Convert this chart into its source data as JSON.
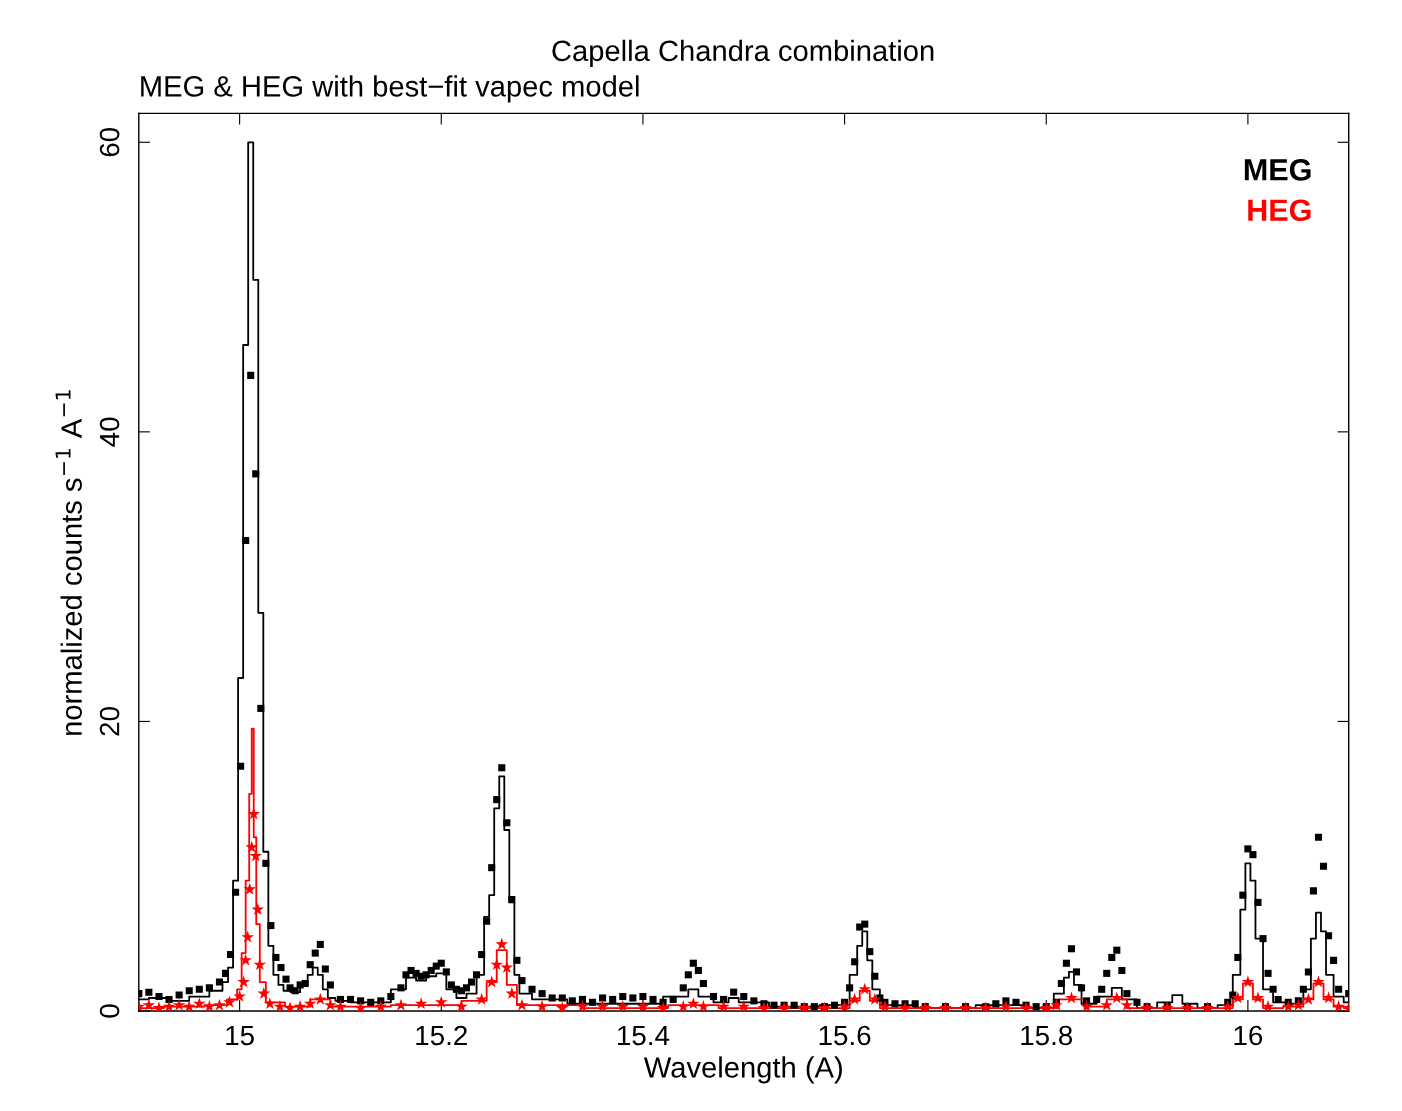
{
  "chart_data": {
    "type": "scatter",
    "title": "Capella Chandra combination",
    "subtitle": "MEG & HEG with best−fit vapec model",
    "xlabel": "Wavelength (A)",
    "ylabel": "normalized counts s$^{−1}$ A$^{−1}$",
    "xlim": [
      14.9,
      16.1
    ],
    "ylim": [
      0,
      62
    ],
    "xticks": [
      15,
      15.2,
      15.4,
      15.6,
      15.8,
      16
    ],
    "yticks": [
      0,
      20,
      40,
      60
    ],
    "grid": false,
    "legend": "top right",
    "series": [
      {
        "name": "MEG",
        "marker": "square",
        "color": "#000000",
        "x": [
          14.9,
          14.91,
          14.92,
          14.93,
          14.94,
          14.95,
          14.96,
          14.97,
          14.98,
          14.986,
          14.991,
          14.996,
          15.001,
          15.006,
          15.011,
          15.016,
          15.021,
          15.026,
          15.031,
          15.036,
          15.041,
          15.046,
          15.05,
          15.055,
          15.06,
          15.065,
          15.07,
          15.075,
          15.08,
          15.085,
          15.09,
          15.1,
          15.11,
          15.12,
          15.13,
          15.14,
          15.15,
          15.16,
          15.165,
          15.17,
          15.175,
          15.18,
          15.185,
          15.19,
          15.195,
          15.2,
          15.205,
          15.21,
          15.215,
          15.22,
          15.225,
          15.23,
          15.235,
          15.24,
          15.245,
          15.25,
          15.255,
          15.26,
          15.265,
          15.27,
          15.275,
          15.28,
          15.29,
          15.3,
          15.31,
          15.32,
          15.33,
          15.34,
          15.35,
          15.36,
          15.37,
          15.38,
          15.39,
          15.4,
          15.41,
          15.42,
          15.43,
          15.44,
          15.445,
          15.45,
          15.455,
          15.46,
          15.47,
          15.48,
          15.49,
          15.5,
          15.51,
          15.52,
          15.53,
          15.54,
          15.55,
          15.56,
          15.57,
          15.58,
          15.59,
          15.6,
          15.605,
          15.61,
          15.615,
          15.62,
          15.625,
          15.63,
          15.635,
          15.64,
          15.65,
          15.66,
          15.67,
          15.68,
          15.7,
          15.72,
          15.74,
          15.75,
          15.76,
          15.77,
          15.78,
          15.79,
          15.8,
          15.81,
          15.815,
          15.82,
          15.825,
          15.83,
          15.835,
          15.84,
          15.85,
          15.855,
          15.86,
          15.865,
          15.87,
          15.875,
          15.88,
          15.89,
          15.9,
          15.92,
          15.94,
          15.96,
          15.98,
          15.985,
          15.99,
          15.995,
          16.0,
          16.005,
          16.01,
          16.015,
          16.02,
          16.025,
          16.03,
          16.04,
          16.05,
          16.055,
          16.06,
          16.065,
          16.07,
          16.075,
          16.08,
          16.085,
          16.09,
          16.1
        ],
        "values": [
          1.2,
          1.3,
          1.0,
          0.8,
          1.1,
          1.4,
          1.5,
          1.6,
          2.0,
          2.6,
          3.9,
          8.2,
          16.9,
          32.5,
          43.9,
          37.1,
          20.9,
          10.2,
          5.9,
          3.7,
          3.0,
          2.2,
          1.6,
          1.4,
          1.8,
          1.9,
          3.2,
          4.0,
          4.6,
          2.9,
          1.8,
          0.8,
          0.8,
          0.7,
          0.6,
          0.7,
          1.0,
          1.6,
          2.5,
          2.8,
          2.6,
          2.4,
          2.5,
          2.8,
          3.1,
          3.3,
          2.7,
          1.8,
          1.5,
          1.4,
          1.6,
          2.0,
          2.5,
          3.9,
          6.2,
          9.9,
          14.6,
          16.8,
          13.0,
          7.7,
          3.5,
          2.1,
          1.5,
          1.2,
          0.9,
          0.9,
          0.7,
          0.8,
          0.6,
          0.9,
          0.8,
          1.0,
          0.9,
          1.0,
          0.8,
          0.6,
          0.8,
          1.6,
          2.5,
          3.3,
          2.8,
          1.9,
          1.0,
          0.8,
          1.3,
          1.0,
          0.7,
          0.5,
          0.4,
          0.4,
          0.4,
          0.3,
          0.3,
          0.3,
          0.4,
          0.6,
          1.6,
          3.4,
          5.8,
          6.0,
          4.1,
          2.4,
          0.9,
          0.6,
          0.5,
          0.5,
          0.5,
          0.3,
          0.3,
          0.3,
          0.3,
          0.5,
          0.7,
          0.6,
          0.4,
          0.3,
          0.3,
          0.6,
          1.9,
          3.3,
          4.3,
          2.7,
          1.6,
          0.7,
          0.8,
          1.5,
          2.6,
          3.7,
          4.2,
          2.8,
          1.2,
          0.6,
          0.3,
          0.3,
          0.3,
          0.3,
          0.6,
          1.1,
          3.7,
          8.0,
          11.2,
          10.8,
          7.5,
          5.0,
          2.6,
          1.5,
          0.8,
          0.6,
          0.7,
          1.5,
          2.7,
          8.3,
          12.0,
          10.0,
          5.2,
          3.5,
          1.5,
          1.2
        ]
      },
      {
        "type": "step",
        "color": "#000000",
        "x": [
          14.9,
          14.92,
          14.94,
          14.96,
          14.98,
          14.986,
          14.991,
          14.996,
          15.001,
          15.006,
          15.011,
          15.016,
          15.021,
          15.026,
          15.031,
          15.036,
          15.041,
          15.046,
          15.055,
          15.065,
          15.07,
          15.075,
          15.08,
          15.085,
          15.09,
          15.1,
          15.12,
          15.14,
          15.16,
          15.17,
          15.18,
          15.19,
          15.2,
          15.21,
          15.22,
          15.23,
          15.24,
          15.245,
          15.25,
          15.255,
          15.26,
          15.265,
          15.27,
          15.275,
          15.28,
          15.3,
          15.35,
          15.4,
          15.44,
          15.45,
          15.46,
          15.48,
          15.49,
          15.5,
          15.55,
          15.6,
          15.61,
          15.615,
          15.62,
          15.625,
          15.63,
          15.64,
          15.7,
          15.76,
          15.8,
          15.815,
          15.82,
          15.825,
          15.83,
          15.84,
          15.86,
          15.87,
          15.88,
          15.9,
          15.92,
          15.93,
          15.94,
          15.96,
          15.98,
          15.99,
          15.995,
          16.0,
          16.005,
          16.01,
          16.02,
          16.03,
          16.05,
          16.06,
          16.065,
          16.07,
          16.075,
          16.08,
          16.09,
          16.1
        ],
        "values": [
          0.8,
          0.9,
          0.7,
          1.0,
          1.4,
          2.0,
          3.0,
          9.0,
          23.0,
          46.0,
          60.0,
          50.5,
          27.5,
          11.0,
          4.5,
          2.5,
          1.8,
          1.4,
          1.3,
          1.8,
          2.5,
          3.0,
          2.5,
          1.5,
          0.9,
          0.7,
          0.6,
          0.6,
          1.5,
          2.3,
          2.1,
          2.4,
          2.6,
          1.5,
          0.9,
          1.2,
          2.5,
          6.5,
          8.0,
          14.0,
          16.2,
          12.5,
          7.5,
          2.5,
          1.2,
          0.8,
          0.5,
          0.5,
          1.0,
          1.5,
          1.0,
          0.6,
          0.9,
          0.6,
          0.3,
          0.4,
          2.5,
          4.5,
          5.5,
          3.5,
          1.5,
          0.4,
          0.2,
          0.4,
          0.2,
          1.2,
          2.3,
          2.7,
          1.8,
          0.5,
          1.0,
          1.6,
          0.8,
          0.2,
          0.6,
          1.1,
          0.5,
          0.2,
          0.4,
          2.5,
          7.0,
          10.2,
          9.0,
          5.0,
          1.5,
          0.6,
          0.5,
          1.5,
          5.0,
          6.8,
          5.5,
          2.5,
          1.0,
          0.6
        ]
      },
      {
        "name": "HEG",
        "marker": "star",
        "color": "#ff0000",
        "x": [
          14.9,
          14.91,
          14.92,
          14.93,
          14.94,
          14.95,
          14.96,
          14.97,
          14.98,
          14.99,
          15.0,
          15.004,
          15.006,
          15.008,
          15.01,
          15.012,
          15.014,
          15.016,
          15.018,
          15.02,
          15.024,
          15.03,
          15.04,
          15.05,
          15.06,
          15.07,
          15.08,
          15.09,
          15.1,
          15.12,
          15.14,
          15.16,
          15.18,
          15.2,
          15.22,
          15.24,
          15.25,
          15.255,
          15.26,
          15.265,
          15.27,
          15.28,
          15.3,
          15.32,
          15.34,
          15.36,
          15.38,
          15.4,
          15.42,
          15.44,
          15.45,
          15.46,
          15.48,
          15.5,
          15.52,
          15.54,
          15.56,
          15.58,
          15.6,
          15.61,
          15.62,
          15.63,
          15.64,
          15.66,
          15.68,
          15.7,
          15.72,
          15.74,
          15.76,
          15.78,
          15.8,
          15.81,
          15.825,
          15.84,
          15.86,
          15.87,
          15.88,
          15.9,
          15.92,
          15.94,
          15.96,
          15.98,
          15.99,
          16.0,
          16.01,
          16.02,
          16.04,
          16.05,
          16.06,
          16.07,
          16.08,
          16.09,
          16.1
        ],
        "values": [
          0.3,
          0.4,
          0.2,
          0.3,
          0.4,
          0.3,
          0.5,
          0.3,
          0.4,
          0.6,
          1.0,
          2.0,
          3.5,
          5.1,
          8.4,
          11.3,
          13.6,
          10.7,
          7.0,
          3.2,
          1.2,
          0.5,
          0.3,
          0.2,
          0.3,
          0.5,
          0.8,
          0.4,
          0.3,
          0.2,
          0.3,
          0.4,
          0.5,
          0.6,
          0.3,
          0.8,
          2.0,
          3.2,
          4.6,
          3.0,
          1.2,
          0.4,
          0.3,
          0.2,
          0.3,
          0.3,
          0.3,
          0.3,
          0.2,
          0.3,
          0.5,
          0.3,
          0.3,
          0.3,
          0.2,
          0.2,
          0.2,
          0.2,
          0.3,
          0.8,
          1.5,
          0.8,
          0.3,
          0.2,
          0.2,
          0.2,
          0.2,
          0.2,
          0.3,
          0.2,
          0.2,
          0.4,
          0.9,
          0.3,
          0.4,
          0.9,
          0.4,
          0.2,
          0.2,
          0.2,
          0.2,
          0.3,
          0.9,
          2.0,
          0.9,
          0.3,
          0.3,
          0.4,
          0.8,
          2.0,
          0.9,
          0.3,
          0.2
        ]
      },
      {
        "type": "step",
        "color": "#ff0000",
        "x": [
          14.9,
          14.95,
          14.98,
          14.995,
          15.0,
          15.004,
          15.008,
          15.011,
          15.013,
          15.015,
          15.018,
          15.022,
          15.03,
          15.06,
          15.08,
          15.1,
          15.2,
          15.24,
          15.25,
          15.26,
          15.27,
          15.28,
          15.4,
          15.45,
          15.5,
          15.6,
          15.61,
          15.62,
          15.63,
          15.64,
          15.8,
          15.825,
          15.85,
          15.87,
          15.89,
          15.98,
          15.99,
          16.0,
          16.01,
          16.02,
          16.05,
          16.06,
          16.07,
          16.08,
          16.09,
          16.1
        ],
        "values": [
          0.2,
          0.3,
          0.4,
          0.8,
          1.5,
          4.0,
          9.0,
          15.0,
          19.5,
          12.0,
          6.0,
          2.0,
          0.6,
          0.3,
          0.8,
          0.3,
          0.4,
          0.7,
          2.0,
          4.2,
          1.8,
          0.4,
          0.2,
          0.4,
          0.2,
          0.2,
          0.7,
          1.4,
          0.7,
          0.2,
          0.2,
          0.8,
          0.3,
          0.8,
          0.2,
          0.2,
          0.8,
          1.9,
          0.8,
          0.2,
          0.3,
          0.8,
          1.9,
          0.8,
          0.3,
          0.2
        ]
      }
    ]
  }
}
